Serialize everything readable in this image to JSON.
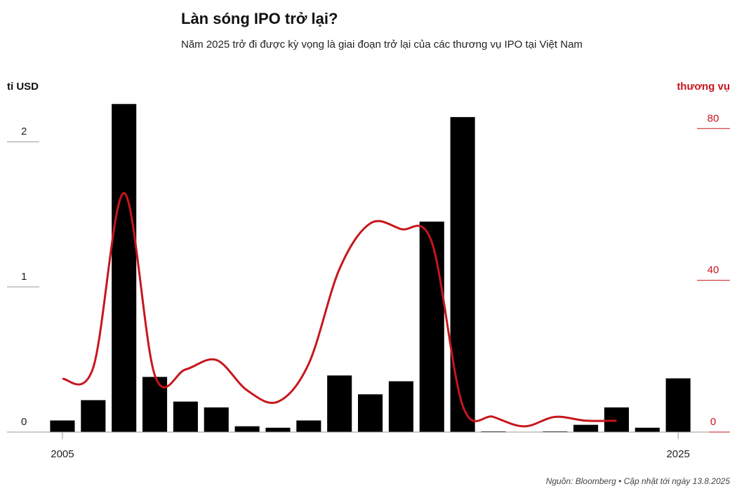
{
  "chart_data": {
    "type": "bar-line",
    "title": "Làn sóng IPO trở lại?",
    "subtitle": "Năm 2025 trở đi được kỳ vọng là giai đoạn trở lại của các thương vụ IPO tại Việt Nam",
    "y_label": "tỉ USD",
    "y2_label": "thương vụ",
    "source": "Nguồn: Bloomberg • Cập nhật tới ngày 13.8.2025",
    "x": [
      2005,
      2006,
      2007,
      2008,
      2009,
      2010,
      2011,
      2012,
      2013,
      2014,
      2015,
      2016,
      2017,
      2018,
      2019,
      2020,
      2021,
      2022,
      2023,
      2024,
      2025
    ],
    "xlim": [
      2003.2,
      2026.0
    ],
    "xticks": [
      2005,
      2025
    ],
    "ylim": [
      0,
      2.3
    ],
    "yticks": [
      0,
      1,
      2
    ],
    "y2lim": [
      0,
      88
    ],
    "y2ticks": [
      0,
      40,
      80
    ],
    "series": [
      {
        "name": "tỉ USD",
        "color": "#000000",
        "kind": "bar",
        "values": [
          0.08,
          0.22,
          2.26,
          0.38,
          0.21,
          0.17,
          0.04,
          0.03,
          0.08,
          0.39,
          0.26,
          0.35,
          1.45,
          2.17,
          0.005,
          0,
          0.005,
          0.05,
          0.17,
          0.03,
          0.37
        ]
      },
      {
        "name": "thương vụ",
        "color": "#c8161d",
        "kind": "line",
        "axis": "y2",
        "values": [
          14,
          17,
          63,
          15,
          16.5,
          19,
          11,
          8,
          18,
          43,
          55,
          53.5,
          50,
          7,
          4,
          1.5,
          4,
          3,
          3,
          null,
          null
        ]
      }
    ]
  }
}
